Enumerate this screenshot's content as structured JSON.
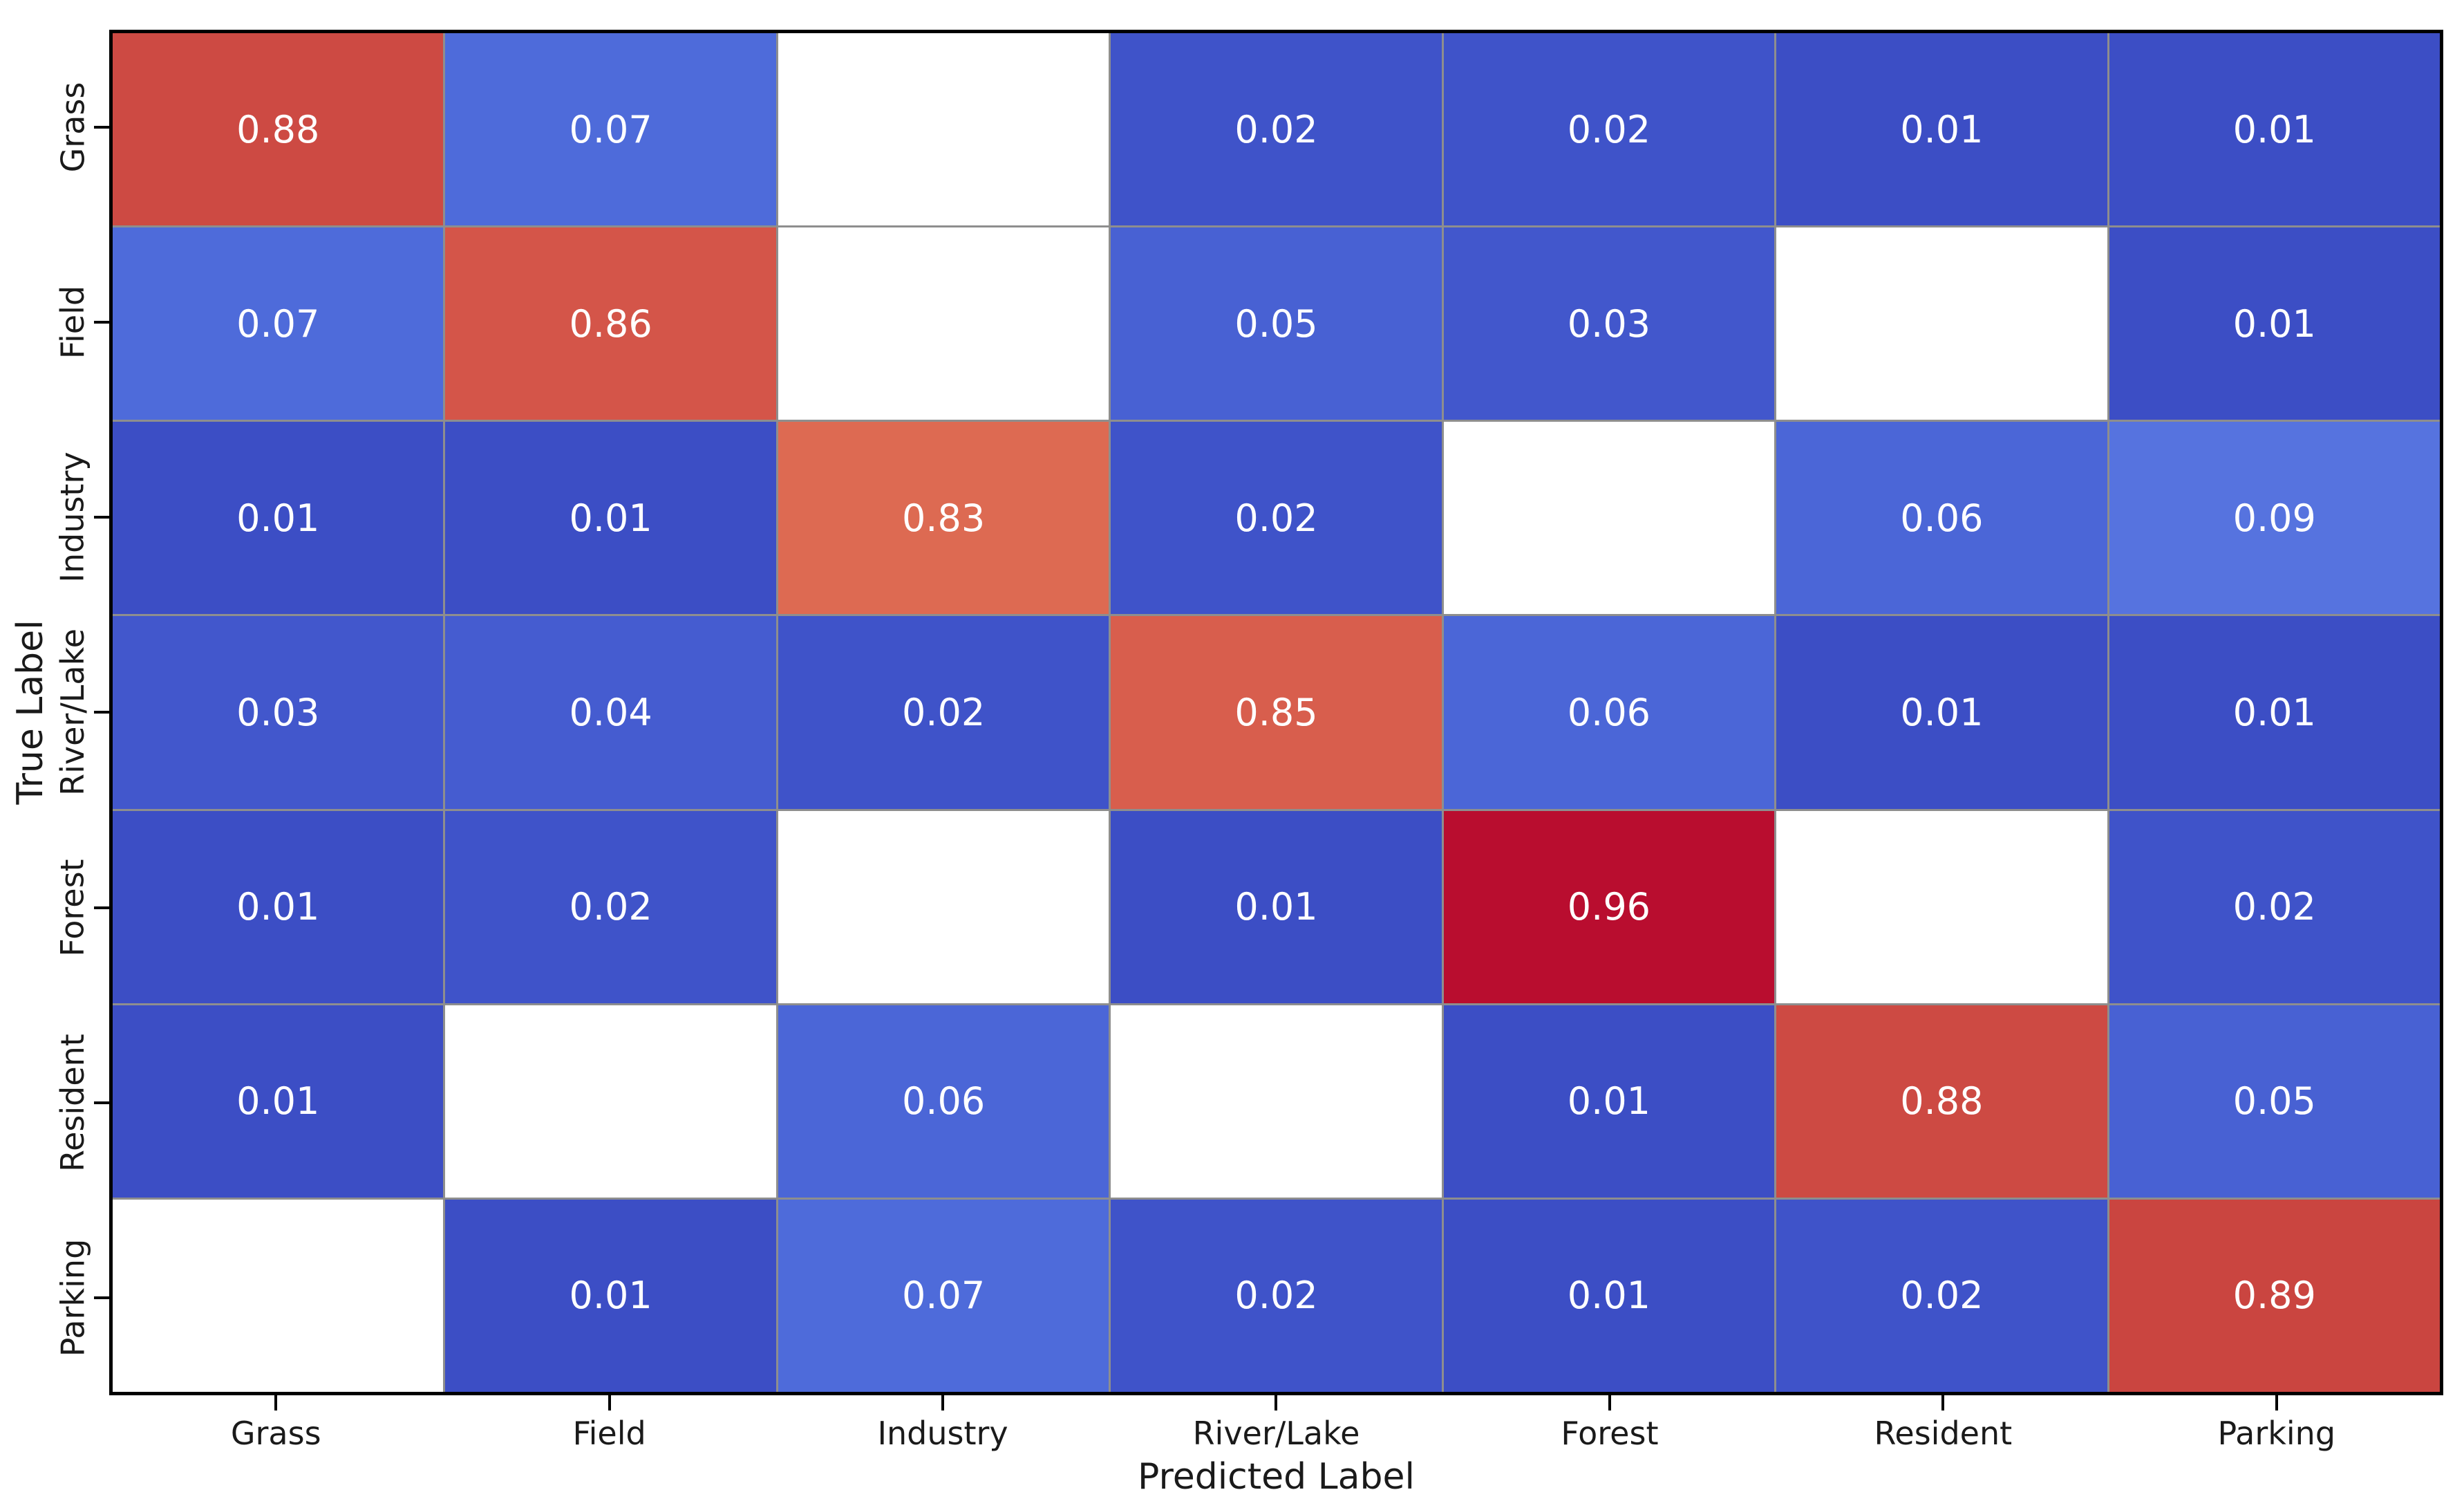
{
  "chart_data": {
    "type": "heatmap",
    "title": "",
    "xlabel": "Predicted Label",
    "ylabel": "True Label",
    "col_labels": [
      "Grass",
      "Field",
      "Industry",
      "River/Lake",
      "Forest",
      "Resident",
      "Parking"
    ],
    "row_labels": [
      "Grass",
      "Field",
      "Industry",
      "River/Lake",
      "Forest",
      "Resident",
      "Parking"
    ],
    "matrix": [
      [
        0.88,
        0.07,
        null,
        0.02,
        0.02,
        0.01,
        0.01
      ],
      [
        0.07,
        0.86,
        null,
        0.05,
        0.03,
        null,
        0.01
      ],
      [
        0.01,
        0.01,
        0.83,
        0.02,
        null,
        0.06,
        0.09
      ],
      [
        0.03,
        0.04,
        0.02,
        0.85,
        0.06,
        0.01,
        0.01
      ],
      [
        0.01,
        0.02,
        null,
        0.01,
        0.96,
        null,
        0.02
      ],
      [
        0.01,
        null,
        0.06,
        null,
        0.01,
        0.88,
        0.05
      ],
      [
        null,
        0.01,
        0.07,
        0.02,
        0.01,
        0.02,
        0.89
      ]
    ],
    "cells": [
      [
        {
          "label": "0.88",
          "color": "#cd4a43"
        },
        {
          "label": "0.07",
          "color": "#4e6bda"
        },
        {
          "label": "",
          "color": "#ffffff"
        },
        {
          "label": "0.02",
          "color": "#3f53c9"
        },
        {
          "label": "0.02",
          "color": "#3f53c9"
        },
        {
          "label": "0.01",
          "color": "#3c4ec5"
        },
        {
          "label": "0.01",
          "color": "#3c4ec5"
        }
      ],
      [
        {
          "label": "0.07",
          "color": "#4e6bda"
        },
        {
          "label": "0.86",
          "color": "#d45549"
        },
        {
          "label": "",
          "color": "#ffffff"
        },
        {
          "label": "0.05",
          "color": "#4861d3"
        },
        {
          "label": "0.03",
          "color": "#4257cc"
        },
        {
          "label": "",
          "color": "#ffffff"
        },
        {
          "label": "0.01",
          "color": "#3c4ec5"
        }
      ],
      [
        {
          "label": "0.01",
          "color": "#3c4ec5"
        },
        {
          "label": "0.01",
          "color": "#3c4ec5"
        },
        {
          "label": "0.83",
          "color": "#dd6a52"
        },
        {
          "label": "0.02",
          "color": "#3f53c9"
        },
        {
          "label": "",
          "color": "#ffffff"
        },
        {
          "label": "0.06",
          "color": "#4b66d7"
        },
        {
          "label": "0.09",
          "color": "#5673df"
        }
      ],
      [
        {
          "label": "0.03",
          "color": "#4257cc"
        },
        {
          "label": "0.04",
          "color": "#455cd0"
        },
        {
          "label": "0.02",
          "color": "#3f53c9"
        },
        {
          "label": "0.85",
          "color": "#d85e4d"
        },
        {
          "label": "0.06",
          "color": "#4b66d7"
        },
        {
          "label": "0.01",
          "color": "#3c4ec5"
        },
        {
          "label": "0.01",
          "color": "#3c4ec5"
        }
      ],
      [
        {
          "label": "0.01",
          "color": "#3c4ec5"
        },
        {
          "label": "0.02",
          "color": "#3f53c9"
        },
        {
          "label": "",
          "color": "#ffffff"
        },
        {
          "label": "0.01",
          "color": "#3c4ec5"
        },
        {
          "label": "0.96",
          "color": "#b90d2f"
        },
        {
          "label": "",
          "color": "#ffffff"
        },
        {
          "label": "0.02",
          "color": "#3f53c9"
        }
      ],
      [
        {
          "label": "0.01",
          "color": "#3c4ec5"
        },
        {
          "label": "",
          "color": "#ffffff"
        },
        {
          "label": "0.06",
          "color": "#4b66d7"
        },
        {
          "label": "",
          "color": "#ffffff"
        },
        {
          "label": "0.01",
          "color": "#3c4ec5"
        },
        {
          "label": "0.88",
          "color": "#cd4a43"
        },
        {
          "label": "0.05",
          "color": "#4861d3"
        }
      ],
      [
        {
          "label": "",
          "color": "#ffffff"
        },
        {
          "label": "0.01",
          "color": "#3c4ec5"
        },
        {
          "label": "0.07",
          "color": "#4e6bda"
        },
        {
          "label": "0.02",
          "color": "#3f53c9"
        },
        {
          "label": "0.01",
          "color": "#3c4ec5"
        },
        {
          "label": "0.02",
          "color": "#3f53c9"
        },
        {
          "label": "0.89",
          "color": "#ca4540"
        }
      ]
    ],
    "colors": {
      "masked_cell": "#ffffff",
      "grid_line": "#8e8e8e",
      "spine": "#000000",
      "cell_text": "#ffffff",
      "axis_text": "#1a1a1a",
      "colormap_low": "#3c4ec5",
      "colormap_high": "#b90d2f"
    },
    "layout": {
      "grid": "cell-borders-only",
      "legend": "none",
      "value_range": [
        0,
        1
      ]
    }
  }
}
